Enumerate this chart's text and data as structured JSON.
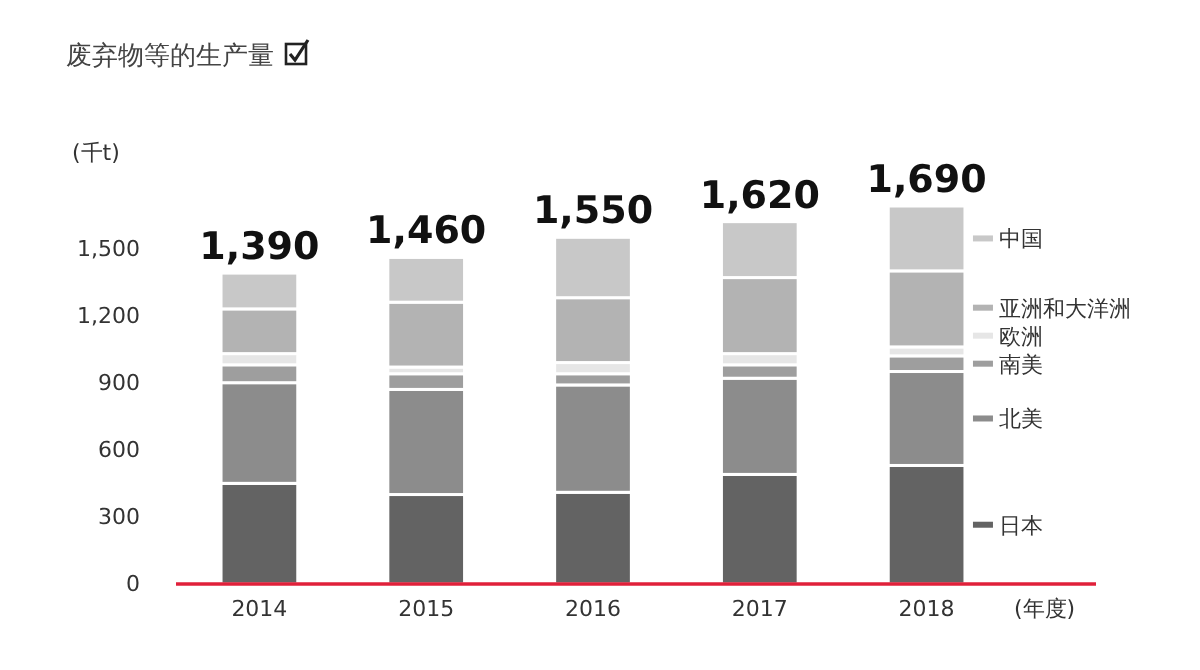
{
  "chart_data": {
    "type": "bar",
    "stacked": true,
    "title": "废弃物等的生产量",
    "ylabel": "(千t)",
    "xlabel": "(年度)",
    "categories": [
      "2014",
      "2015",
      "2016",
      "2017",
      "2018"
    ],
    "series": [
      {
        "name": "日本",
        "color": "#636363",
        "values": [
          450,
          400,
          410,
          490,
          530
        ]
      },
      {
        "name": "北美",
        "color": "#8c8c8c",
        "values": [
          450,
          470,
          480,
          430,
          420
        ]
      },
      {
        "name": "南美",
        "color": "#9e9e9e",
        "values": [
          80,
          70,
          50,
          60,
          70
        ]
      },
      {
        "name": "欧洲",
        "color": "#e6e6e6",
        "values": [
          50,
          30,
          50,
          50,
          40
        ]
      },
      {
        "name": "亚洲和大洋洲",
        "color": "#b3b3b3",
        "values": [
          200,
          290,
          290,
          340,
          340
        ]
      },
      {
        "name": "中国",
        "color": "#c8c8c8",
        "values": [
          160,
          200,
          270,
          250,
          290
        ]
      }
    ],
    "totals": [
      "1,390",
      "1,460",
      "1,550",
      "1,620",
      "1,690"
    ],
    "ylim": [
      0,
      1690
    ],
    "yticks": [
      0,
      300,
      600,
      900,
      {
        "value": 1200,
        "label": "1,200"
      },
      {
        "value": 1500,
        "label": "1,500"
      }
    ],
    "legend": "right",
    "grid": false
  }
}
